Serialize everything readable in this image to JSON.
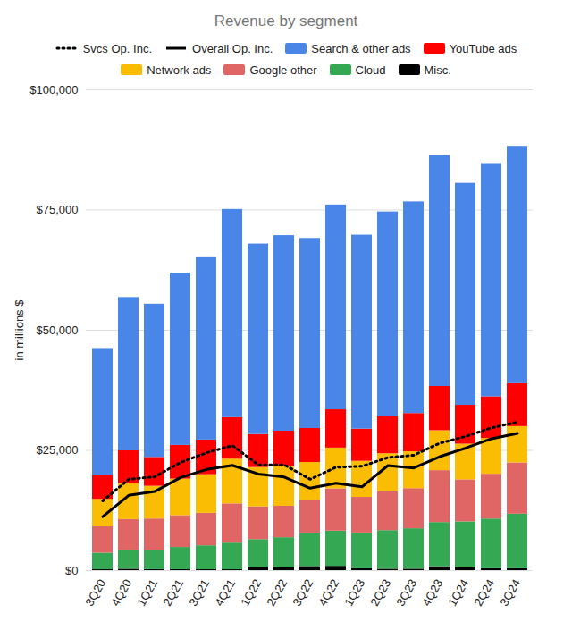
{
  "chart_data": {
    "type": "bar",
    "title": "Revenue by segment",
    "y_label": "in millions $",
    "stacked": true,
    "grid": true,
    "legend": "top",
    "categories": [
      "3Q20",
      "4Q20",
      "1Q21",
      "2Q21",
      "3Q21",
      "4Q21",
      "1Q22",
      "2Q22",
      "3Q22",
      "4Q22",
      "1Q23",
      "2Q23",
      "3Q23",
      "4Q23",
      "1Q24",
      "2Q24",
      "3Q24"
    ],
    "ylim": [
      0,
      100000
    ],
    "yticks": [
      {
        "value": 0,
        "label": "$0"
      },
      {
        "value": 25000,
        "label": "$25,000"
      },
      {
        "value": 50000,
        "label": "$50,000"
      },
      {
        "value": 75000,
        "label": "$75,000"
      },
      {
        "value": 100000,
        "label": "$100,000"
      }
    ],
    "series": [
      {
        "name": "Svcs Op. Inc.",
        "type": "line",
        "line_style": "dotted",
        "color": "#000000",
        "values": [
          14500,
          19000,
          19500,
          22500,
          24500,
          26000,
          22000,
          22000,
          19000,
          21500,
          21700,
          23500,
          24000,
          26500,
          27900,
          29700,
          30900
        ]
      },
      {
        "name": "Overall Op. Inc.",
        "type": "line",
        "line_style": "solid",
        "color": "#000000",
        "values": [
          11213,
          15651,
          16437,
          19361,
          21031,
          21885,
          20094,
          19453,
          17135,
          18160,
          17415,
          21838,
          21343,
          23697,
          25472,
          27425,
          28521
        ]
      },
      {
        "name": "Search & other ads",
        "type": "bar",
        "color": "#4a86e8",
        "values": [
          26338,
          31903,
          31879,
          35845,
          37926,
          43301,
          39618,
          40689,
          39539,
          42604,
          40359,
          42628,
          44026,
          48020,
          46156,
          48509,
          49385
        ]
      },
      {
        "name": "YouTube ads",
        "type": "bar",
        "color": "#ff0000",
        "values": [
          5037,
          6885,
          6005,
          7002,
          7205,
          8633,
          6869,
          7340,
          7071,
          7963,
          6693,
          7665,
          7952,
          9200,
          8090,
          8663,
          8921
        ]
      },
      {
        "name": "Network ads",
        "type": "bar",
        "color": "#fbbc04",
        "values": [
          5720,
          7411,
          6800,
          7597,
          8027,
          9305,
          8174,
          8259,
          7872,
          8475,
          7496,
          7850,
          7669,
          8297,
          7413,
          7444,
          7548
        ]
      },
      {
        "name": "Google other",
        "type": "bar",
        "color": "#e06666",
        "values": [
          5478,
          6494,
          6494,
          6623,
          6754,
          8161,
          6811,
          6553,
          6895,
          8796,
          7413,
          8142,
          8339,
          10794,
          8739,
          9312,
          10656
        ]
      },
      {
        "name": "Cloud",
        "type": "bar",
        "color": "#34a853",
        "values": [
          3444,
          3831,
          4047,
          4628,
          4990,
          5541,
          5821,
          6276,
          6868,
          7315,
          7454,
          8031,
          8411,
          9192,
          9574,
          10347,
          11353
        ]
      },
      {
        "name": "Misc.",
        "type": "bar",
        "color": "#000000",
        "values": [
          180,
          290,
          200,
          190,
          180,
          180,
          630,
          570,
          850,
          900,
          370,
          290,
          300,
          810,
          570,
          390,
          390
        ]
      }
    ]
  }
}
